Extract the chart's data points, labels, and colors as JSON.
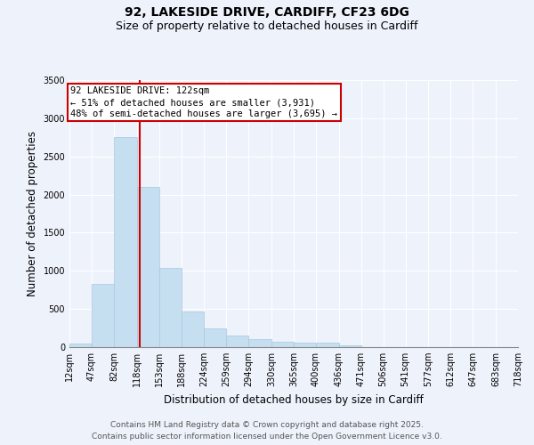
{
  "title_line1": "92, LAKESIDE DRIVE, CARDIFF, CF23 6DG",
  "title_line2": "Size of property relative to detached houses in Cardiff",
  "xlabel": "Distribution of detached houses by size in Cardiff",
  "ylabel": "Number of detached properties",
  "bar_color": "#c6dff0",
  "bar_edge_color": "#a8c8e0",
  "background_color": "#eef2fb",
  "grid_color": "#ffffff",
  "annotation_box_color": "#cc0000",
  "vline_color": "#cc0000",
  "bin_edges": [
    12,
    47,
    82,
    118,
    153,
    188,
    224,
    259,
    294,
    330,
    365,
    400,
    436,
    471,
    506,
    541,
    577,
    612,
    647,
    683,
    718
  ],
  "bin_labels": [
    "12sqm",
    "47sqm",
    "82sqm",
    "118sqm",
    "153sqm",
    "188sqm",
    "224sqm",
    "259sqm",
    "294sqm",
    "330sqm",
    "365sqm",
    "400sqm",
    "436sqm",
    "471sqm",
    "506sqm",
    "541sqm",
    "577sqm",
    "612sqm",
    "647sqm",
    "683sqm",
    "718sqm"
  ],
  "bar_heights": [
    50,
    830,
    2750,
    2100,
    1040,
    470,
    250,
    155,
    100,
    70,
    55,
    55,
    25,
    0,
    0,
    0,
    0,
    0,
    0,
    0
  ],
  "property_size": 122,
  "annotation_line1": "92 LAKESIDE DRIVE: 122sqm",
  "annotation_line2": "← 51% of detached houses are smaller (3,931)",
  "annotation_line3": "48% of semi-detached houses are larger (3,695) →",
  "ylim": [
    0,
    3500
  ],
  "yticks": [
    0,
    500,
    1000,
    1500,
    2000,
    2500,
    3000,
    3500
  ],
  "footer_line1": "Contains HM Land Registry data © Crown copyright and database right 2025.",
  "footer_line2": "Contains public sector information licensed under the Open Government Licence v3.0.",
  "title_fontsize": 10,
  "subtitle_fontsize": 9,
  "axis_label_fontsize": 8.5,
  "tick_fontsize": 7,
  "annotation_fontsize": 7.5,
  "footer_fontsize": 6.5
}
